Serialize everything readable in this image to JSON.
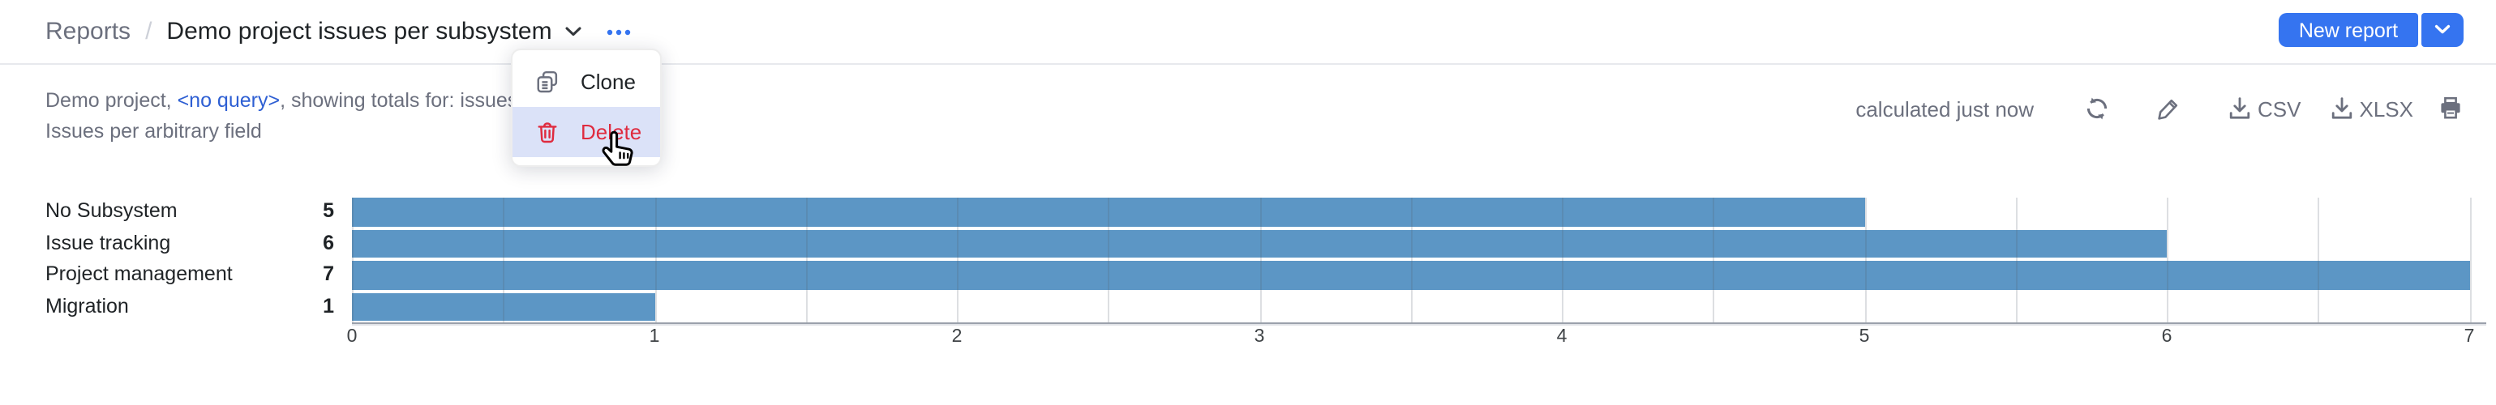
{
  "header": {
    "breadcrumb": {
      "root": "Reports",
      "separator": "/",
      "title": "Demo project issues per subsystem"
    },
    "new_report_label": "New report"
  },
  "context_menu": {
    "items": [
      {
        "label": "Clone",
        "icon": "clone-icon",
        "danger": false
      },
      {
        "label": "Delete",
        "icon": "trash-icon",
        "danger": true,
        "highlighted": true
      }
    ]
  },
  "subtitle": {
    "line1_prefix": "Demo project, ",
    "query_link": "<no query>",
    "line1_suffix": ", showing totals for: issues count",
    "line2": "Issues per arbitrary field"
  },
  "toolbar": {
    "calculated": "calculated just now",
    "csv_label": "CSV",
    "xlsx_label": "XLSX",
    "icons": [
      "refresh-icon",
      "edit-pencil-icon",
      "download-icon",
      "download-icon",
      "printer-icon"
    ]
  },
  "colors": {
    "accent_blue": "#3574f0",
    "bar_blue": "#5c96c5",
    "danger_red": "#df2b3f",
    "link_blue": "#2e5fd3",
    "menu_highlight": "#dbe2f8"
  },
  "chart_data": {
    "type": "bar",
    "orientation": "horizontal",
    "title": "",
    "categories": [
      "No Subsystem",
      "Issue tracking",
      "Project management",
      "Migration"
    ],
    "values": [
      5,
      6,
      7,
      1
    ],
    "xlabel": "",
    "ylabel": "",
    "xlim": [
      0,
      7
    ],
    "x_ticks": [
      0,
      1,
      2,
      3,
      4,
      5,
      6,
      7
    ],
    "gridline_interval": 0.5,
    "grid": true,
    "legend": false,
    "bar_color": "#5c96c5"
  }
}
